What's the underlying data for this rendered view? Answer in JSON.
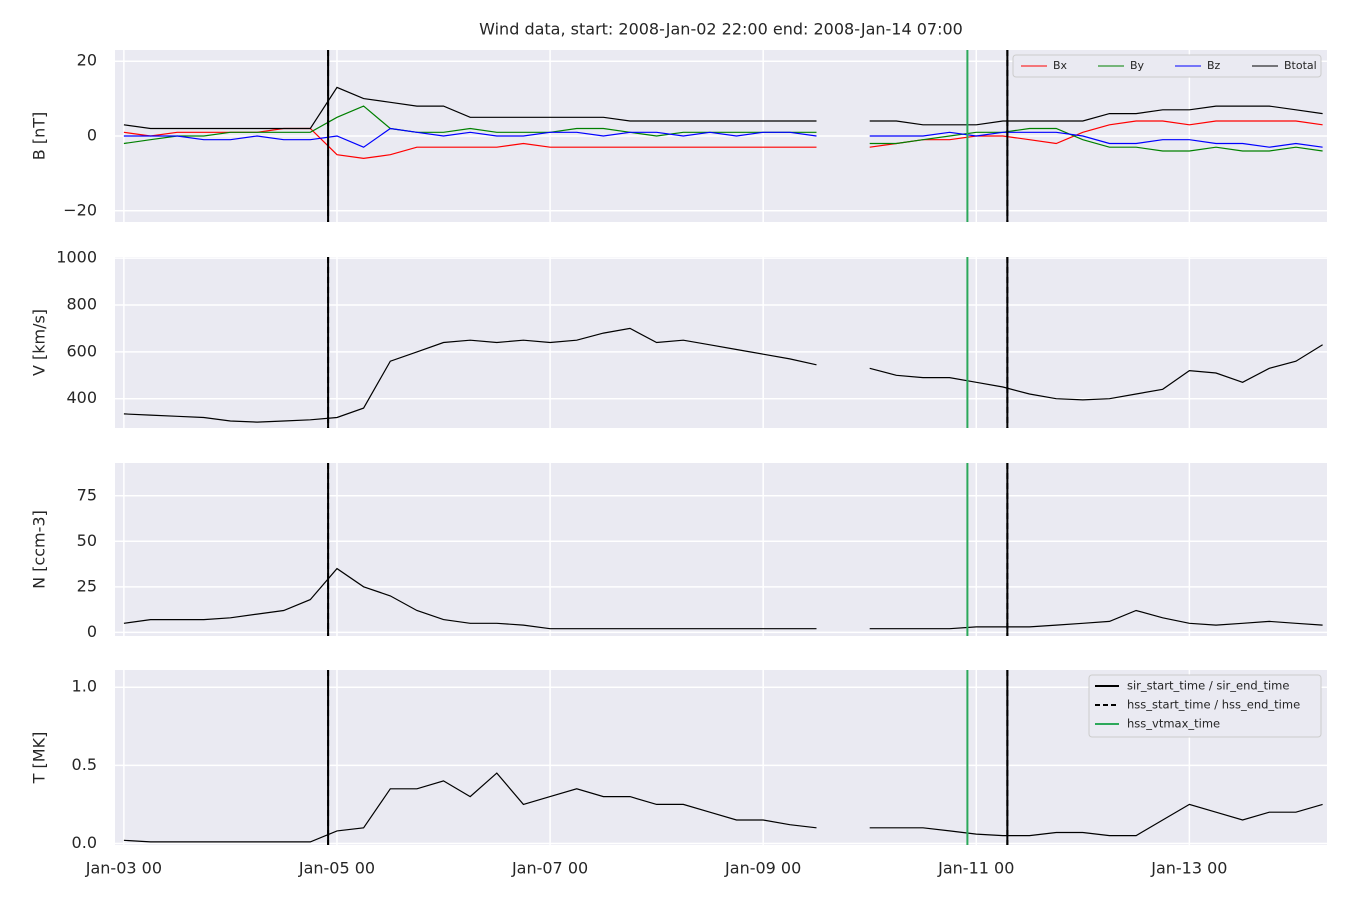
{
  "chart_data": {
    "type": "multi-panel-line",
    "title": "Wind data, start: 2008-Jan-02 22:00  end: 2008-Jan-14 07:00",
    "x": [
      "Jan-03 00",
      "Jan-03 06",
      "Jan-03 12",
      "Jan-03 18",
      "Jan-04 00",
      "Jan-04 06",
      "Jan-04 12",
      "Jan-04 18",
      "Jan-05 00",
      "Jan-05 06",
      "Jan-05 12",
      "Jan-05 18",
      "Jan-06 00",
      "Jan-06 06",
      "Jan-06 12",
      "Jan-06 18",
      "Jan-07 00",
      "Jan-07 06",
      "Jan-07 12",
      "Jan-07 18",
      "Jan-08 00",
      "Jan-08 06",
      "Jan-08 12",
      "Jan-08 18",
      "Jan-09 00",
      "Jan-09 06",
      "Jan-09 12",
      "Jan-09 18",
      "Jan-10 00",
      "Jan-10 06",
      "Jan-10 12",
      "Jan-10 18",
      "Jan-11 00",
      "Jan-11 06",
      "Jan-11 12",
      "Jan-11 18",
      "Jan-12 00",
      "Jan-12 06",
      "Jan-12 12",
      "Jan-12 18",
      "Jan-13 00",
      "Jan-13 06",
      "Jan-13 12",
      "Jan-13 18",
      "Jan-14 00",
      "Jan-14 06"
    ],
    "xlim": [
      "Jan-02 22",
      "Jan-14 07"
    ],
    "xticks": [
      "Jan-03 00",
      "Jan-05 00",
      "Jan-07 00",
      "Jan-09 00",
      "Jan-11 00",
      "Jan-13 00"
    ],
    "grid": true,
    "panels": [
      {
        "ylabel": "B [nT]",
        "ylim": [
          -23,
          23
        ],
        "yticks": [
          {
            "value": -20,
            "label": "−20"
          },
          0,
          20
        ],
        "legend": "upper right",
        "series": [
          {
            "name": "Bx",
            "color": "#ff0000",
            "values": [
              1,
              0,
              1,
              1,
              1,
              1,
              2,
              2,
              -5,
              -6,
              -5,
              -3,
              -3,
              -3,
              -3,
              -2,
              -3,
              -3,
              -3,
              -3,
              -3,
              -3,
              -3,
              -3,
              -3,
              -3,
              -3,
              null,
              -3,
              -2,
              -1,
              -1,
              0,
              0,
              -1,
              -2,
              1,
              3,
              4,
              4,
              3,
              4,
              4,
              4,
              4,
              3
            ]
          },
          {
            "name": "By",
            "color": "#008000",
            "values": [
              -2,
              -1,
              0,
              0,
              1,
              1,
              1,
              1,
              5,
              8,
              2,
              1,
              1,
              2,
              1,
              1,
              1,
              2,
              2,
              1,
              0,
              1,
              1,
              1,
              1,
              1,
              1,
              null,
              -2,
              -2,
              -1,
              0,
              1,
              1,
              2,
              2,
              -1,
              -3,
              -3,
              -4,
              -4,
              -3,
              -4,
              -4,
              -3,
              -4
            ]
          },
          {
            "name": "Bz",
            "color": "#0000ff",
            "values": [
              0,
              0,
              0,
              -1,
              -1,
              0,
              -1,
              -1,
              0,
              -3,
              2,
              1,
              0,
              1,
              0,
              0,
              1,
              1,
              0,
              1,
              1,
              0,
              1,
              0,
              1,
              1,
              0,
              null,
              0,
              0,
              0,
              1,
              0,
              1,
              1,
              1,
              0,
              -2,
              -2,
              -1,
              -1,
              -2,
              -2,
              -3,
              -2,
              -3
            ]
          },
          {
            "name": "Btotal",
            "color": "#000000",
            "values": [
              3,
              2,
              2,
              2,
              2,
              2,
              2,
              2,
              13,
              10,
              9,
              8,
              8,
              5,
              5,
              5,
              5,
              5,
              5,
              4,
              4,
              4,
              4,
              4,
              4,
              4,
              4,
              null,
              4,
              4,
              3,
              3,
              3,
              4,
              4,
              4,
              4,
              6,
              6,
              7,
              7,
              8,
              8,
              8,
              7,
              6
            ]
          }
        ]
      },
      {
        "ylabel": "V [km/s]",
        "ylim": [
          275,
          1005
        ],
        "yticks": [
          400,
          600,
          800,
          1000
        ],
        "series": [
          {
            "color": "#000000",
            "values": [
              335,
              330,
              325,
              320,
              305,
              300,
              305,
              310,
              320,
              360,
              560,
              600,
              640,
              650,
              640,
              650,
              640,
              650,
              680,
              700,
              640,
              650,
              630,
              610,
              590,
              570,
              545,
              null,
              530,
              500,
              490,
              490,
              470,
              450,
              420,
              400,
              395,
              400,
              420,
              440,
              520,
              510,
              470,
              530,
              560,
              630
            ]
          }
        ]
      },
      {
        "ylabel": "N [ccm-3]",
        "ylim": [
          -2,
          93
        ],
        "yticks": [
          0,
          25,
          50,
          75
        ],
        "series": [
          {
            "color": "#000000",
            "values": [
              5,
              7,
              7,
              7,
              8,
              10,
              12,
              18,
              35,
              25,
              20,
              12,
              7,
              5,
              5,
              4,
              2,
              2,
              2,
              2,
              2,
              2,
              2,
              2,
              2,
              2,
              2,
              null,
              2,
              2,
              2,
              2,
              3,
              3,
              3,
              4,
              5,
              6,
              12,
              8,
              5,
              4,
              5,
              6,
              5,
              4
            ]
          }
        ]
      },
      {
        "ylabel": "T [MK]",
        "ylim": [
          -0.01,
          1.11
        ],
        "yticks": [
          {
            "value": 0,
            "label": "0.0"
          },
          0.5,
          {
            "value": 1,
            "label": "1.0"
          }
        ],
        "legend": "upper right",
        "series": [
          {
            "color": "#000000",
            "values": [
              0.02,
              0.01,
              0.01,
              0.01,
              0.01,
              0.01,
              0.01,
              0.01,
              0.08,
              0.1,
              0.35,
              0.35,
              0.4,
              0.3,
              0.45,
              0.25,
              0.3,
              0.35,
              0.3,
              0.3,
              0.25,
              0.25,
              0.2,
              0.15,
              0.15,
              0.12,
              0.1,
              null,
              0.1,
              0.1,
              0.1,
              0.08,
              0.06,
              0.05,
              0.05,
              0.07,
              0.07,
              0.05,
              0.05,
              0.15,
              0.25,
              0.2,
              0.15,
              0.2,
              0.2,
              0.25
            ]
          }
        ]
      }
    ],
    "vlines": [
      {
        "name": "sir_start_time / sir_end_time",
        "color": "#000000",
        "style": "solid",
        "x": [
          "Jan-04 22",
          "Jan-11 07"
        ]
      },
      {
        "name": "hss_start_time / hss_end_time",
        "color": "#000000",
        "style": "dashed",
        "x": [
          "Jan-04 22",
          "Jan-11 07"
        ]
      },
      {
        "name": "hss_vtmax_time",
        "color": "#2ca85a",
        "style": "solid",
        "x": [
          "Jan-10 22"
        ]
      }
    ]
  }
}
